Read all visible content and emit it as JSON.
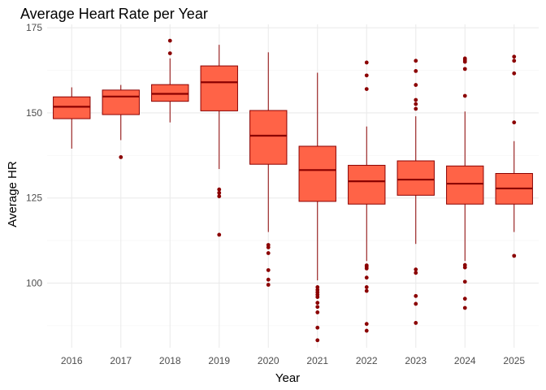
{
  "chart_data": {
    "type": "box",
    "title": "Average Heart Rate per Year",
    "xlabel": "Year",
    "ylabel": "Average HR",
    "ylim": [
      81,
      176
    ],
    "y_ticks": [
      100,
      125,
      150,
      175
    ],
    "grid": true,
    "categories": [
      "2016",
      "2017",
      "2018",
      "2019",
      "2020",
      "2021",
      "2022",
      "2023",
      "2024",
      "2025"
    ],
    "boxes": [
      {
        "category": "2016",
        "lower_whisker": 139.5,
        "q1": 148.3,
        "median": 151.8,
        "q3": 154.7,
        "upper_whisker": 157.5,
        "outliers": []
      },
      {
        "category": "2017",
        "lower_whisker": 142.0,
        "q1": 149.5,
        "median": 154.8,
        "q3": 156.7,
        "upper_whisker": 158.2,
        "outliers": [
          137.0
        ]
      },
      {
        "category": "2018",
        "lower_whisker": 147.2,
        "q1": 153.4,
        "median": 155.6,
        "q3": 158.3,
        "upper_whisker": 166.0,
        "outliers": [
          167.5,
          171.2
        ]
      },
      {
        "category": "2019",
        "lower_whisker": 133.5,
        "q1": 150.6,
        "median": 159.0,
        "q3": 163.8,
        "upper_whisker": 170.0,
        "outliers": [
          127.5,
          126.5,
          125.5,
          114.2
        ]
      },
      {
        "category": "2020",
        "lower_whisker": 115.0,
        "q1": 134.9,
        "median": 143.3,
        "q3": 150.7,
        "upper_whisker": 167.8,
        "outliers": [
          111.2,
          110.5,
          108.8,
          103.8,
          101.0,
          99.5
        ]
      },
      {
        "category": "2021",
        "lower_whisker": 100.8,
        "q1": 124.0,
        "median": 133.2,
        "q3": 140.2,
        "upper_whisker": 161.8,
        "outliers": [
          98.8,
          98.0,
          97.3,
          96.6,
          95.9,
          94.2,
          93.0,
          91.4,
          86.9,
          83.2
        ]
      },
      {
        "category": "2022",
        "lower_whisker": 106.5,
        "q1": 123.2,
        "median": 129.9,
        "q3": 134.6,
        "upper_whisker": 146.0,
        "outliers": [
          164.8,
          161.0,
          157.0,
          105.2,
          104.8,
          104.3,
          101.6,
          98.8,
          97.7,
          88.0,
          86.0
        ]
      },
      {
        "category": "2023",
        "lower_whisker": 111.5,
        "q1": 125.8,
        "median": 130.4,
        "q3": 135.9,
        "upper_whisker": 149.0,
        "outliers": [
          165.3,
          162.3,
          158.2,
          153.8,
          152.6,
          151.2,
          104.0,
          103.0,
          96.2,
          93.9,
          88.3
        ]
      },
      {
        "category": "2024",
        "lower_whisker": 106.5,
        "q1": 123.2,
        "median": 129.2,
        "q3": 134.4,
        "upper_whisker": 150.4,
        "outliers": [
          166.0,
          165.5,
          165.0,
          162.9,
          155.0,
          105.3,
          104.6,
          100.4,
          95.4,
          92.7
        ]
      },
      {
        "category": "2025",
        "lower_whisker": 115.0,
        "q1": 123.2,
        "median": 127.8,
        "q3": 132.2,
        "upper_whisker": 141.7,
        "outliers": [
          166.5,
          165.3,
          161.6,
          147.2,
          108.0
        ]
      }
    ],
    "colors": {
      "box_fill": "#FF6347",
      "box_line": "#8B0000",
      "outlier": "#8B0000",
      "grid_major": "#EBEBEB",
      "grid_minor": "#F5F5F5",
      "background": "#FFFFFF"
    }
  }
}
